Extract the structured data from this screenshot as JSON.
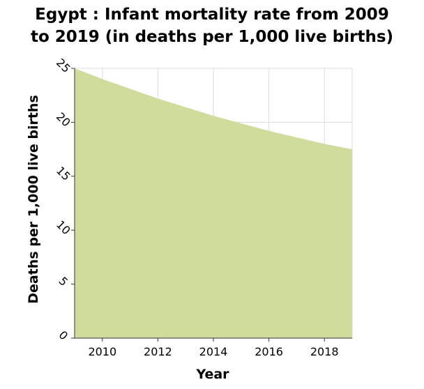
{
  "chart_data": {
    "type": "area",
    "title": "Egypt : Infant mortality rate from 2009 to 2019 (in deaths per 1,000 live births)",
    "title_lines": [
      "Egypt : Infant mortality rate from 2009",
      "to 2019 (in deaths per 1,000 live births)"
    ],
    "xlabel": "Year",
    "ylabel": "Deaths per 1,000 live births",
    "x": [
      2009,
      2010,
      2011,
      2012,
      2013,
      2014,
      2015,
      2016,
      2017,
      2018,
      2019
    ],
    "series": [
      {
        "values": [
          25.0,
          24.0,
          23.1,
          22.2,
          21.4,
          20.6,
          19.9,
          19.2,
          18.6,
          18.0,
          17.5
        ]
      }
    ],
    "xlim": [
      2009,
      2019
    ],
    "ylim": [
      0,
      25
    ],
    "xticks": [
      2010,
      2012,
      2014,
      2016,
      2018
    ],
    "yticks": [
      0,
      5,
      10,
      15,
      20,
      25
    ],
    "grid": true,
    "fill_color": "#d0dc9c",
    "grid_color": "#dcdcdc"
  }
}
